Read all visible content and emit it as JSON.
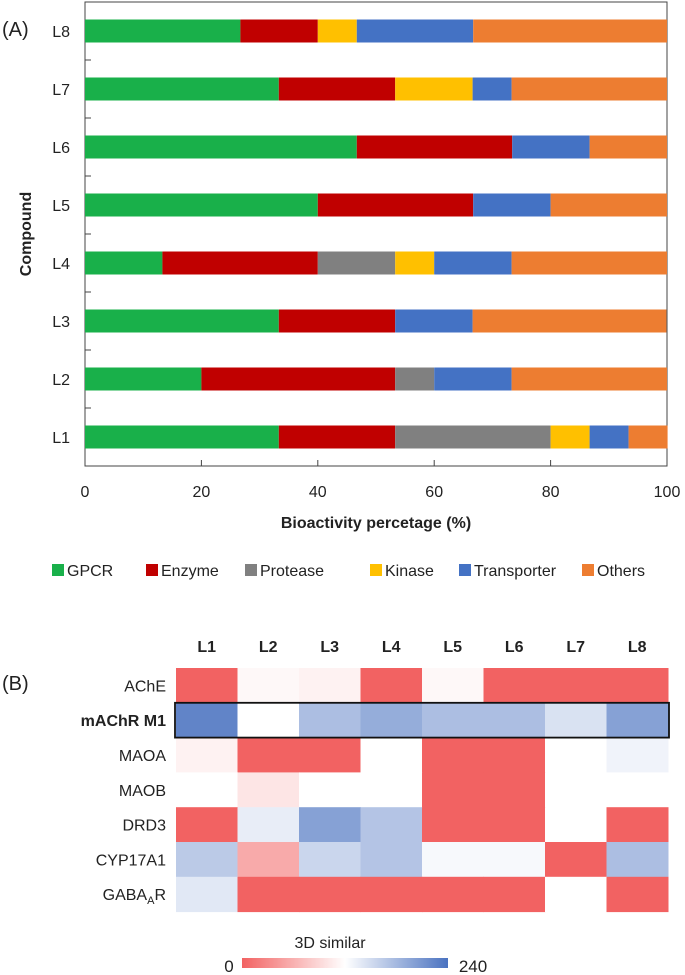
{
  "chart_data": [
    {
      "type": "bar",
      "stacked": true,
      "orientation": "horizontal",
      "panel_label": "(A)",
      "xlabel": "Bioactivity percetage (%)",
      "ylabel": "Compound",
      "xlim": [
        0,
        100
      ],
      "x_ticks": [
        "0",
        "20",
        "40",
        "60",
        "80",
        "100"
      ],
      "categories": [
        "L8",
        "L7",
        "L6",
        "L5",
        "L4",
        "L3",
        "L2",
        "L1"
      ],
      "series": [
        {
          "name": "GPCR",
          "color": "#19b04a",
          "values": [
            26.7,
            33.3,
            46.7,
            40.0,
            13.3,
            33.3,
            20.0,
            33.3
          ]
        },
        {
          "name": "Enzyme",
          "color": "#c00000",
          "values": [
            13.3,
            20.0,
            26.7,
            26.7,
            26.7,
            20.0,
            33.3,
            20.0
          ]
        },
        {
          "name": "Protease",
          "color": "#808080",
          "values": [
            0,
            0,
            0,
            0,
            13.3,
            0,
            6.7,
            26.7
          ]
        },
        {
          "name": "Kinase",
          "color": "#ffc000",
          "values": [
            6.7,
            13.3,
            0,
            0,
            6.7,
            0,
            0,
            6.7
          ]
        },
        {
          "name": "Transporter",
          "color": "#4472c4",
          "values": [
            20.0,
            6.7,
            13.3,
            13.3,
            13.3,
            13.3,
            13.3,
            6.7
          ]
        },
        {
          "name": "Others",
          "color": "#ed7d31",
          "values": [
            33.3,
            26.7,
            13.3,
            20.0,
            26.7,
            33.3,
            26.7,
            6.7
          ]
        }
      ],
      "legend_position": "bottom"
    },
    {
      "type": "heatmap",
      "panel_label": "(B)",
      "columns": [
        "L1",
        "L2",
        "L3",
        "L4",
        "L5",
        "L6",
        "L7",
        "L8"
      ],
      "rows": [
        {
          "label": "AChE",
          "bold": false
        },
        {
          "label": "mAChR M1",
          "bold": true,
          "highlighted": true
        },
        {
          "label": "MAOA",
          "bold": false
        },
        {
          "label": "MAOB",
          "bold": false
        },
        {
          "label": "DRD3",
          "bold": false
        },
        {
          "label": "CYP17A1",
          "bold": false
        },
        {
          "label": "GABAAR",
          "bold": false
        }
      ],
      "values": [
        [
          0,
          115,
          110,
          0,
          115,
          0,
          0,
          0
        ],
        [
          225,
          120,
          175,
          190,
          175,
          175,
          145,
          200
        ],
        [
          110,
          0,
          0,
          120,
          0,
          0,
          120,
          130
        ],
        [
          120,
          100,
          120,
          120,
          0,
          0,
          120,
          120
        ],
        [
          0,
          135,
          200,
          170,
          0,
          0,
          120,
          0
        ],
        [
          165,
          55,
          155,
          170,
          125,
          125,
          0,
          175
        ],
        [
          140,
          0,
          0,
          0,
          0,
          0,
          120,
          0
        ]
      ],
      "colorbar": {
        "title": "3D similar",
        "min": 0,
        "max": 240,
        "min_label": "0",
        "max_label": "240",
        "low_color": "#f26262",
        "mid_color": "#ffffff",
        "high_color": "#4a72c0"
      }
    }
  ],
  "gaba_label": {
    "main": "GABA",
    "sub": "A",
    "tail": "R"
  }
}
